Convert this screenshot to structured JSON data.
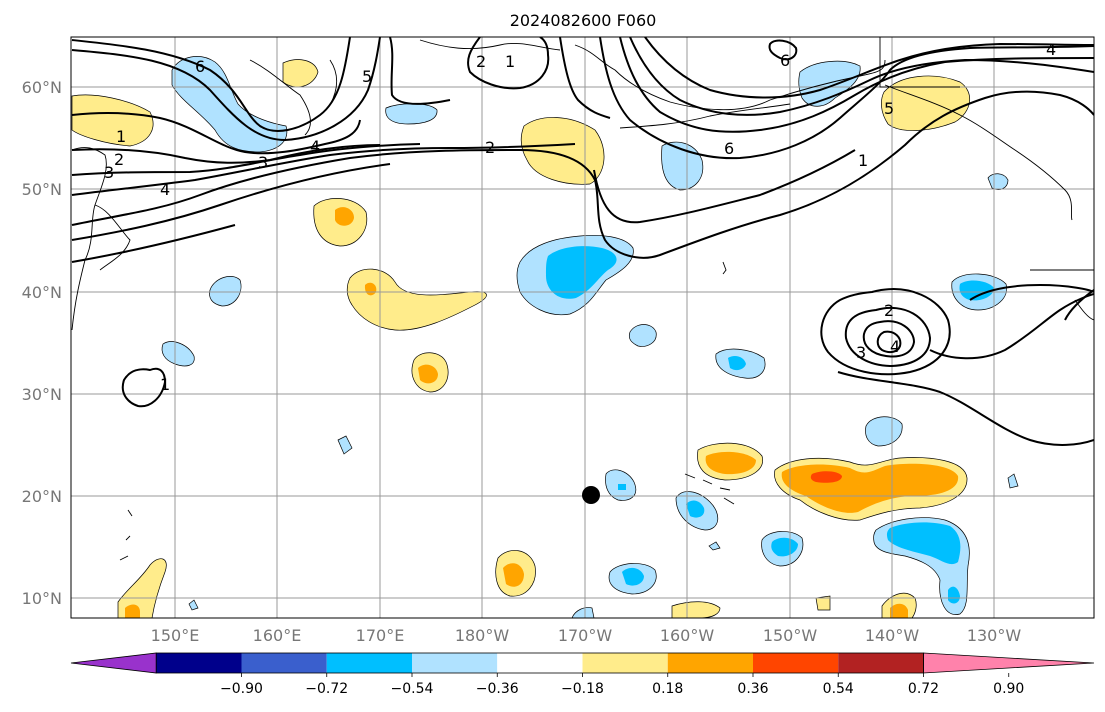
{
  "title": "2024082600 F060",
  "map": {
    "lat_labels": [
      "60°N",
      "50°N",
      "40°N",
      "30°N",
      "20°N",
      "10°N"
    ],
    "lon_labels": [
      "150°E",
      "160°E",
      "170°E",
      "180°W",
      "170°W",
      "160°W",
      "150°W",
      "140°W",
      "130°W"
    ],
    "contour_labels": [
      "6",
      "2",
      "1",
      "5",
      "6",
      "4",
      "1",
      "2",
      "3",
      "4",
      "3",
      "2",
      "6",
      "1",
      "5",
      "4",
      "2",
      "3",
      "4",
      "1"
    ],
    "marker": {
      "lat": 20,
      "lon": -170,
      "color": "#000000"
    }
  },
  "colorbar": {
    "colors": [
      "#9932cc",
      "#00008b",
      "#3a5fcd",
      "#00bfff",
      "#b0e2ff",
      "#ffffff",
      "#ffec8b",
      "#ffa500",
      "#ff4500",
      "#b22222",
      "#ff82ab"
    ],
    "labels": [
      "−0.90",
      "−0.72",
      "−0.54",
      "−0.36",
      "−0.18",
      "0.18",
      "0.36",
      "0.54",
      "0.72",
      "0.90"
    ]
  },
  "colors": {
    "light_blue": "#b0e2ff",
    "blue": "#00bfff",
    "light_yellow": "#ffec8b",
    "orange": "#ffa500",
    "red": "#ff4500"
  }
}
